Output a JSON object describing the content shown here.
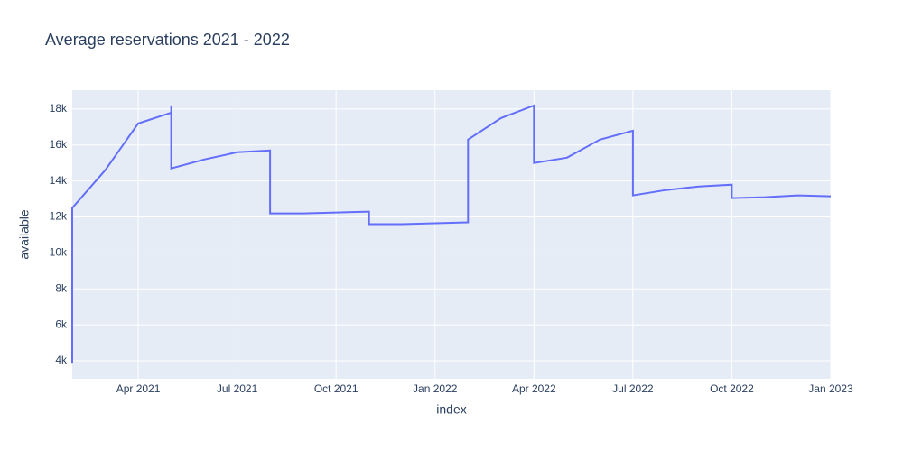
{
  "chart_data": {
    "type": "line",
    "title": "Average reservations 2021 - 2022",
    "x_label": "index",
    "y_label": "available",
    "x": [
      "2021-02",
      "2021-02",
      "2021-03",
      "2021-04",
      "2021-05",
      "2021-05",
      "2021-05",
      "2021-06",
      "2021-07",
      "2021-08",
      "2021-08",
      "2021-09",
      "2021-10",
      "2021-11",
      "2021-11",
      "2021-12",
      "2022-01",
      "2022-02",
      "2022-02",
      "2022-03",
      "2022-04",
      "2022-04",
      "2022-05",
      "2022-06",
      "2022-07",
      "2022-07",
      "2022-08",
      "2022-09",
      "2022-10",
      "2022-10",
      "2022-11",
      "2022-12",
      "2023-01"
    ],
    "series": [
      {
        "name": "available",
        "color": "#636efa",
        "values": [
          3900,
          12500,
          14600,
          17200,
          17800,
          18200,
          14700,
          15200,
          15600,
          15700,
          12200,
          12200,
          12250,
          12300,
          11600,
          11600,
          11650,
          11700,
          16300,
          17500,
          18200,
          15000,
          15300,
          16300,
          16800,
          13200,
          13500,
          13700,
          13800,
          13050,
          13100,
          13200,
          13150
        ]
      }
    ],
    "xlim": [
      "2021-02",
      "2023-01"
    ],
    "xticks": [
      {
        "value": "2021-04",
        "label": "Apr 2021"
      },
      {
        "value": "2021-07",
        "label": "Jul 2021"
      },
      {
        "value": "2021-10",
        "label": "Oct 2021"
      },
      {
        "value": "2022-01",
        "label": "Jan 2022"
      },
      {
        "value": "2022-04",
        "label": "Apr 2022"
      },
      {
        "value": "2022-07",
        "label": "Jul 2022"
      },
      {
        "value": "2022-10",
        "label": "Oct 2022"
      },
      {
        "value": "2023-01",
        "label": "Jan 2023"
      }
    ],
    "ylim": [
      3000,
      19050
    ],
    "yticks": [
      {
        "value": 4000,
        "label": "4k"
      },
      {
        "value": 6000,
        "label": "6k"
      },
      {
        "value": 8000,
        "label": "8k"
      },
      {
        "value": 10000,
        "label": "10k"
      },
      {
        "value": 12000,
        "label": "12k"
      },
      {
        "value": 14000,
        "label": "14k"
      },
      {
        "value": 16000,
        "label": "16k"
      },
      {
        "value": 18000,
        "label": "18k"
      }
    ],
    "grid": true
  }
}
